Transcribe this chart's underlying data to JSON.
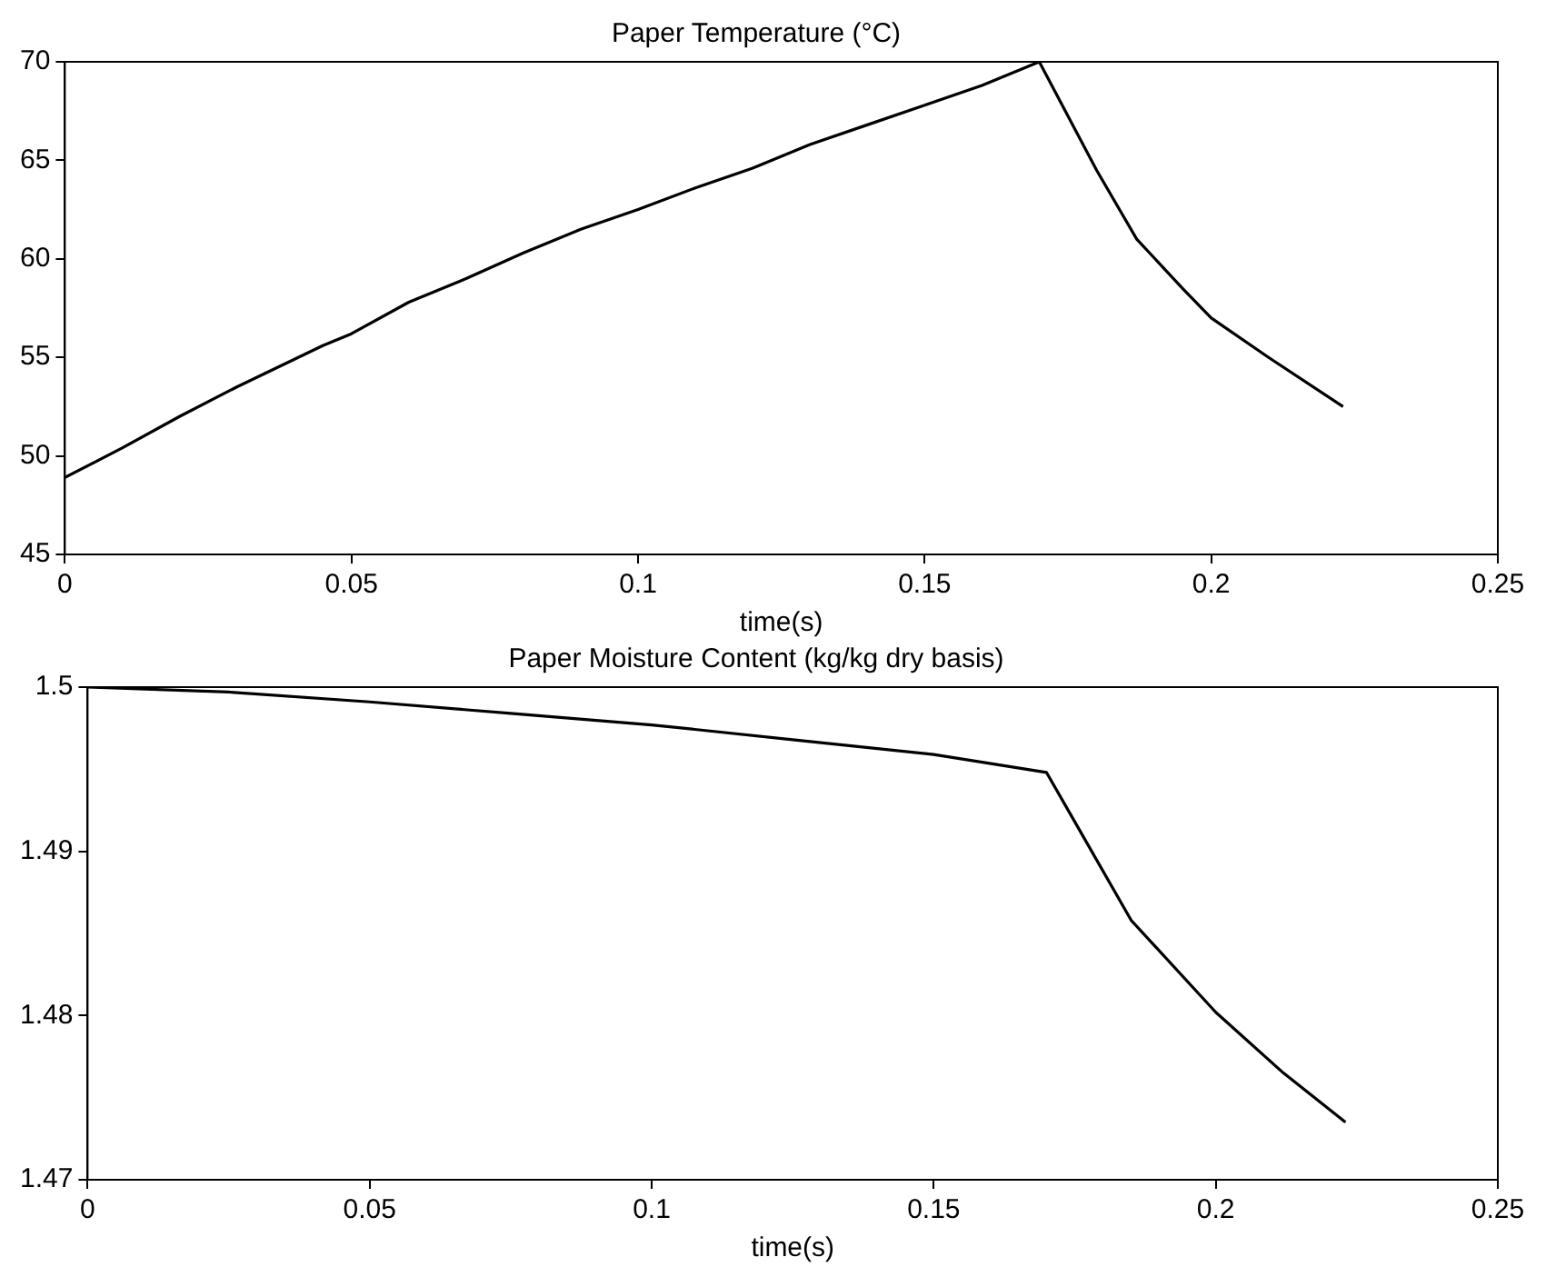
{
  "chart_data": [
    {
      "type": "line",
      "title": "Paper Temperature (°C)",
      "xlabel": "time(s)",
      "x": [
        0,
        0.01,
        0.02,
        0.03,
        0.045,
        0.05,
        0.06,
        0.07,
        0.08,
        0.09,
        0.1,
        0.11,
        0.12,
        0.13,
        0.14,
        0.15,
        0.16,
        0.17,
        0.18,
        0.187,
        0.195,
        0.2,
        0.21,
        0.223
      ],
      "series": [
        {
          "color": "#000000",
          "values": [
            48.9,
            50.4,
            52,
            53.5,
            55.6,
            56.2,
            57.8,
            59,
            60.3,
            61.5,
            62.5,
            63.6,
            64.6,
            65.8,
            66.8,
            67.8,
            68.8,
            70,
            64.5,
            61,
            58.5,
            57,
            55,
            52.5
          ]
        }
      ],
      "xlim": [
        0,
        0.25
      ],
      "xticks": [
        0,
        0.05,
        0.1,
        0.15,
        0.2,
        0.25
      ],
      "ylim": [
        45,
        70
      ],
      "yticks": [
        45,
        50,
        55,
        60,
        65,
        70
      ],
      "grid": false,
      "legend": false,
      "marker": "none",
      "line_style": "solid"
    },
    {
      "type": "line",
      "title": "Paper Moisture Content (kg/kg dry basis)",
      "xlabel": "time(s)",
      "x": [
        0,
        0.025,
        0.05,
        0.075,
        0.1,
        0.125,
        0.15,
        0.17,
        0.175,
        0.185,
        0.2,
        0.212,
        0.223
      ],
      "series": [
        {
          "color": "#000000",
          "values": [
            1.5,
            1.4997,
            1.4991,
            1.4984,
            1.4977,
            1.4968,
            1.4959,
            1.4948,
            1.4918,
            1.4858,
            1.4802,
            1.4765,
            1.4735
          ]
        }
      ],
      "xlim": [
        0,
        0.25
      ],
      "xticks": [
        0,
        0.05,
        0.1,
        0.15,
        0.2,
        0.25
      ],
      "ylim": [
        1.47,
        1.5
      ],
      "yticks": [
        1.47,
        1.48,
        1.49,
        1.5
      ],
      "grid": false,
      "legend": false,
      "marker": "none",
      "line_style": "solid"
    }
  ]
}
